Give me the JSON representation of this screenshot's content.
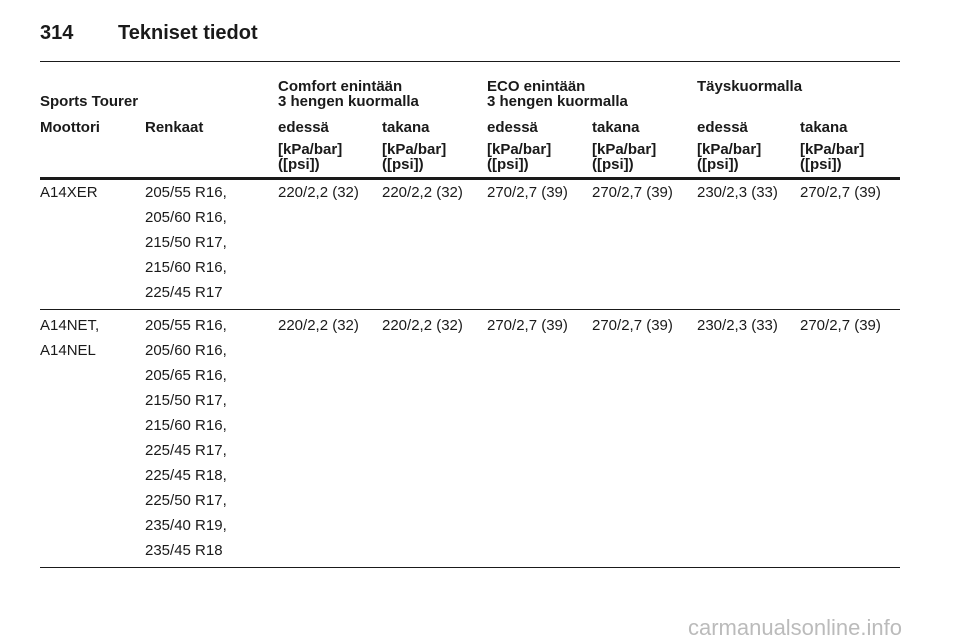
{
  "header": {
    "page_number": "314",
    "title": "Tekniset tiedot"
  },
  "table": {
    "model": "Sports Tourer",
    "groups": [
      {
        "title": "Comfort enintään",
        "subtitle": "3 hengen kuormalla"
      },
      {
        "title": "ECO enintään",
        "subtitle": "3 hengen kuormalla"
      },
      {
        "title": "Täyskuormalla"
      }
    ],
    "column_headers": [
      "Moottori",
      "Renkaat",
      "edessä",
      "takana",
      "edessä",
      "takana",
      "edessä",
      "takana"
    ],
    "units": [
      {
        "line1": "[kPa/bar]",
        "line2": "([psi])"
      },
      {
        "line1": "[kPa/bar]",
        "line2": "([psi])"
      },
      {
        "line1": "[kPa/bar]",
        "line2": "([psi])"
      },
      {
        "line1": "[kPa/bar]",
        "line2": "([psi])"
      },
      {
        "line1": "[kPa/bar]",
        "line2": "([psi])"
      },
      {
        "line1": "[kPa/bar]",
        "line2": "([psi])"
      }
    ],
    "rows": [
      {
        "engines": [
          "A14XER"
        ],
        "tyres": [
          "205/55 R16,",
          "205/60 R16,",
          "215/50 R17,",
          "215/60 R16,",
          "225/45 R17"
        ],
        "pressures": [
          "220/2,2 (32)",
          "220/2,2 (32)",
          "270/2,7 (39)",
          "270/2,7 (39)",
          "230/2,3 (33)",
          "270/2,7 (39)"
        ]
      },
      {
        "engines": [
          "A14NET,",
          "A14NEL"
        ],
        "tyres": [
          "205/55 R16,",
          "205/60 R16,",
          "205/65 R16,",
          "215/50 R17,",
          "215/60 R16,",
          "225/45 R17,",
          "225/45 R18,",
          "225/50 R17,",
          "235/40 R19,",
          "235/45 R18"
        ],
        "pressures": [
          "220/2,2 (32)",
          "220/2,2 (32)",
          "270/2,7 (39)",
          "270/2,7 (39)",
          "230/2,3 (33)",
          "270/2,7 (39)"
        ]
      }
    ]
  },
  "watermark": "carmanualsonline.info"
}
